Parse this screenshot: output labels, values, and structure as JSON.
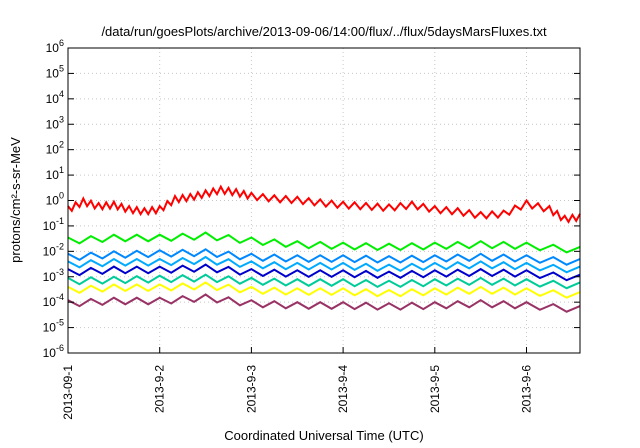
{
  "chart_data": {
    "type": "line",
    "title": "/data/run/goesPlots/archive/2013-09-06/14:00/flux/../flux/5daysMarsFluxes.txt",
    "xlabel": "Coordinated Universal Time (UTC)",
    "ylabel": "protons/cm²-s-sr-MeV",
    "yscale": "log",
    "ylim": [
      1e-06,
      1000000.0
    ],
    "xlim": [
      "2013-09-01",
      "2013-09-06 14:00"
    ],
    "y_ticks": [
      {
        "value": 1e-06,
        "base": "10",
        "exp": "-6"
      },
      {
        "value": 1e-05,
        "base": "10",
        "exp": "-5"
      },
      {
        "value": 0.0001,
        "base": "10",
        "exp": "-4"
      },
      {
        "value": 0.001,
        "base": "10",
        "exp": "-3"
      },
      {
        "value": 0.01,
        "base": "10",
        "exp": "-2"
      },
      {
        "value": 0.1,
        "base": "10",
        "exp": "-1"
      },
      {
        "value": 1.0,
        "base": "10",
        "exp": "0"
      },
      {
        "value": 10.0,
        "base": "10",
        "exp": "1"
      },
      {
        "value": 100.0,
        "base": "10",
        "exp": "2"
      },
      {
        "value": 1000.0,
        "base": "10",
        "exp": "3"
      },
      {
        "value": 10000.0,
        "base": "10",
        "exp": "4"
      },
      {
        "value": 100000.0,
        "base": "10",
        "exp": "5"
      },
      {
        "value": 1000000.0,
        "base": "10",
        "exp": "6"
      }
    ],
    "x_ticks": [
      {
        "value": "2013-09-01",
        "label": "2013-09-1"
      },
      {
        "value": "2013-09-02",
        "label": "2013-9-2"
      },
      {
        "value": "2013-09-03",
        "label": "2013-9-3"
      },
      {
        "value": "2013-09-04",
        "label": "2013-9-4"
      },
      {
        "value": "2013-09-05",
        "label": "2013-9-5"
      },
      {
        "value": "2013-09-06",
        "label": "2013-9-6"
      }
    ],
    "grid": true,
    "series": [
      {
        "color": "#ff0000",
        "x": [
          "2013-09-01 00:00",
          "2013-09-01 04:00",
          "2013-09-01 08:00",
          "2013-09-01 12:00",
          "2013-09-01 16:00",
          "2013-09-01 20:00",
          "2013-09-02 00:00",
          "2013-09-02 04:00",
          "2013-09-02 08:00",
          "2013-09-02 12:00",
          "2013-09-02 16:00",
          "2013-09-02 20:00",
          "2013-09-03 00:00",
          "2013-09-03 06:00",
          "2013-09-03 12:00",
          "2013-09-03 18:00",
          "2013-09-04 00:00",
          "2013-09-04 06:00",
          "2013-09-04 12:00",
          "2013-09-04 18:00",
          "2013-09-05 00:00",
          "2013-09-05 06:00",
          "2013-09-05 12:00",
          "2013-09-05 18:00",
          "2013-09-06 00:00",
          "2013-09-06 06:00",
          "2013-09-06 10:00",
          "2013-09-06 14:00"
        ],
        "y": [
          0.6,
          1.2,
          0.8,
          0.9,
          0.6,
          0.5,
          0.6,
          1.5,
          1.8,
          2.5,
          3.5,
          2.8,
          2.0,
          1.6,
          1.4,
          1.1,
          0.9,
          0.8,
          0.7,
          0.9,
          0.6,
          0.5,
          0.35,
          0.4,
          1.0,
          0.6,
          0.25,
          0.3
        ]
      },
      {
        "color": "#00ee00",
        "x": [
          "2013-09-01 00:00",
          "2013-09-01 12:00",
          "2013-09-02 00:00",
          "2013-09-02 12:00",
          "2013-09-03 00:00",
          "2013-09-03 12:00",
          "2013-09-04 00:00",
          "2013-09-04 12:00",
          "2013-09-05 00:00",
          "2013-09-05 12:00",
          "2013-09-06 00:00",
          "2013-09-06 14:00"
        ],
        "y": [
          0.035,
          0.045,
          0.045,
          0.055,
          0.035,
          0.025,
          0.022,
          0.02,
          0.022,
          0.025,
          0.022,
          0.015
        ]
      },
      {
        "color": "#0088ff",
        "x": [
          "2013-09-01 00:00",
          "2013-09-01 12:00",
          "2013-09-02 00:00",
          "2013-09-02 12:00",
          "2013-09-03 00:00",
          "2013-09-03 12:00",
          "2013-09-04 00:00",
          "2013-09-04 12:00",
          "2013-09-05 00:00",
          "2013-09-05 12:00",
          "2013-09-06 00:00",
          "2013-09-06 14:00"
        ],
        "y": [
          0.008,
          0.01,
          0.011,
          0.012,
          0.008,
          0.007,
          0.007,
          0.0065,
          0.007,
          0.008,
          0.007,
          0.005
        ]
      },
      {
        "color": "#00aaff",
        "x": [
          "2013-09-01 00:00",
          "2013-09-01 12:00",
          "2013-09-02 00:00",
          "2013-09-02 12:00",
          "2013-09-03 00:00",
          "2013-09-03 12:00",
          "2013-09-04 00:00",
          "2013-09-04 12:00",
          "2013-09-05 00:00",
          "2013-09-05 12:00",
          "2013-09-06 00:00",
          "2013-09-06 14:00"
        ],
        "y": [
          0.004,
          0.005,
          0.005,
          0.006,
          0.004,
          0.0035,
          0.0035,
          0.003,
          0.0035,
          0.004,
          0.0035,
          0.0025
        ]
      },
      {
        "color": "#0000cc",
        "x": [
          "2013-09-01 00:00",
          "2013-09-01 12:00",
          "2013-09-02 00:00",
          "2013-09-02 12:00",
          "2013-09-03 00:00",
          "2013-09-03 12:00",
          "2013-09-04 00:00",
          "2013-09-04 12:00",
          "2013-09-05 00:00",
          "2013-09-05 12:00",
          "2013-09-06 00:00",
          "2013-09-06 14:00"
        ],
        "y": [
          0.002,
          0.0025,
          0.0025,
          0.003,
          0.002,
          0.0018,
          0.0018,
          0.0016,
          0.0018,
          0.002,
          0.0018,
          0.0012
        ]
      },
      {
        "color": "#00cc99",
        "x": [
          "2013-09-01 00:00",
          "2013-09-01 12:00",
          "2013-09-02 00:00",
          "2013-09-02 12:00",
          "2013-09-03 00:00",
          "2013-09-03 12:00",
          "2013-09-04 00:00",
          "2013-09-04 12:00",
          "2013-09-05 00:00",
          "2013-09-05 12:00",
          "2013-09-06 00:00",
          "2013-09-06 14:00"
        ],
        "y": [
          0.0009,
          0.001,
          0.0011,
          0.0012,
          0.0009,
          0.0008,
          0.0008,
          0.0007,
          0.0008,
          0.0009,
          0.0008,
          0.0006
        ]
      },
      {
        "color": "#ffff00",
        "x": [
          "2013-09-01 00:00",
          "2013-09-01 12:00",
          "2013-09-02 00:00",
          "2013-09-02 12:00",
          "2013-09-03 00:00",
          "2013-09-03 12:00",
          "2013-09-04 00:00",
          "2013-09-04 12:00",
          "2013-09-05 00:00",
          "2013-09-05 12:00",
          "2013-09-06 00:00",
          "2013-09-06 14:00"
        ],
        "y": [
          0.0004,
          0.0005,
          0.0005,
          0.0006,
          0.0004,
          0.00035,
          0.00035,
          0.0003,
          0.00035,
          0.0004,
          0.00035,
          0.00025
        ]
      },
      {
        "color": "#993366",
        "x": [
          "2013-09-01 00:00",
          "2013-09-01 12:00",
          "2013-09-02 00:00",
          "2013-09-02 12:00",
          "2013-09-03 00:00",
          "2013-09-03 12:00",
          "2013-09-04 00:00",
          "2013-09-04 12:00",
          "2013-09-05 00:00",
          "2013-09-05 12:00",
          "2013-09-06 00:00",
          "2013-09-06 14:00"
        ],
        "y": [
          0.00012,
          0.00015,
          0.00015,
          0.0002,
          0.00012,
          0.0001,
          0.0001,
          9e-05,
          0.0001,
          0.00012,
          0.0001,
          7e-05
        ]
      }
    ]
  }
}
